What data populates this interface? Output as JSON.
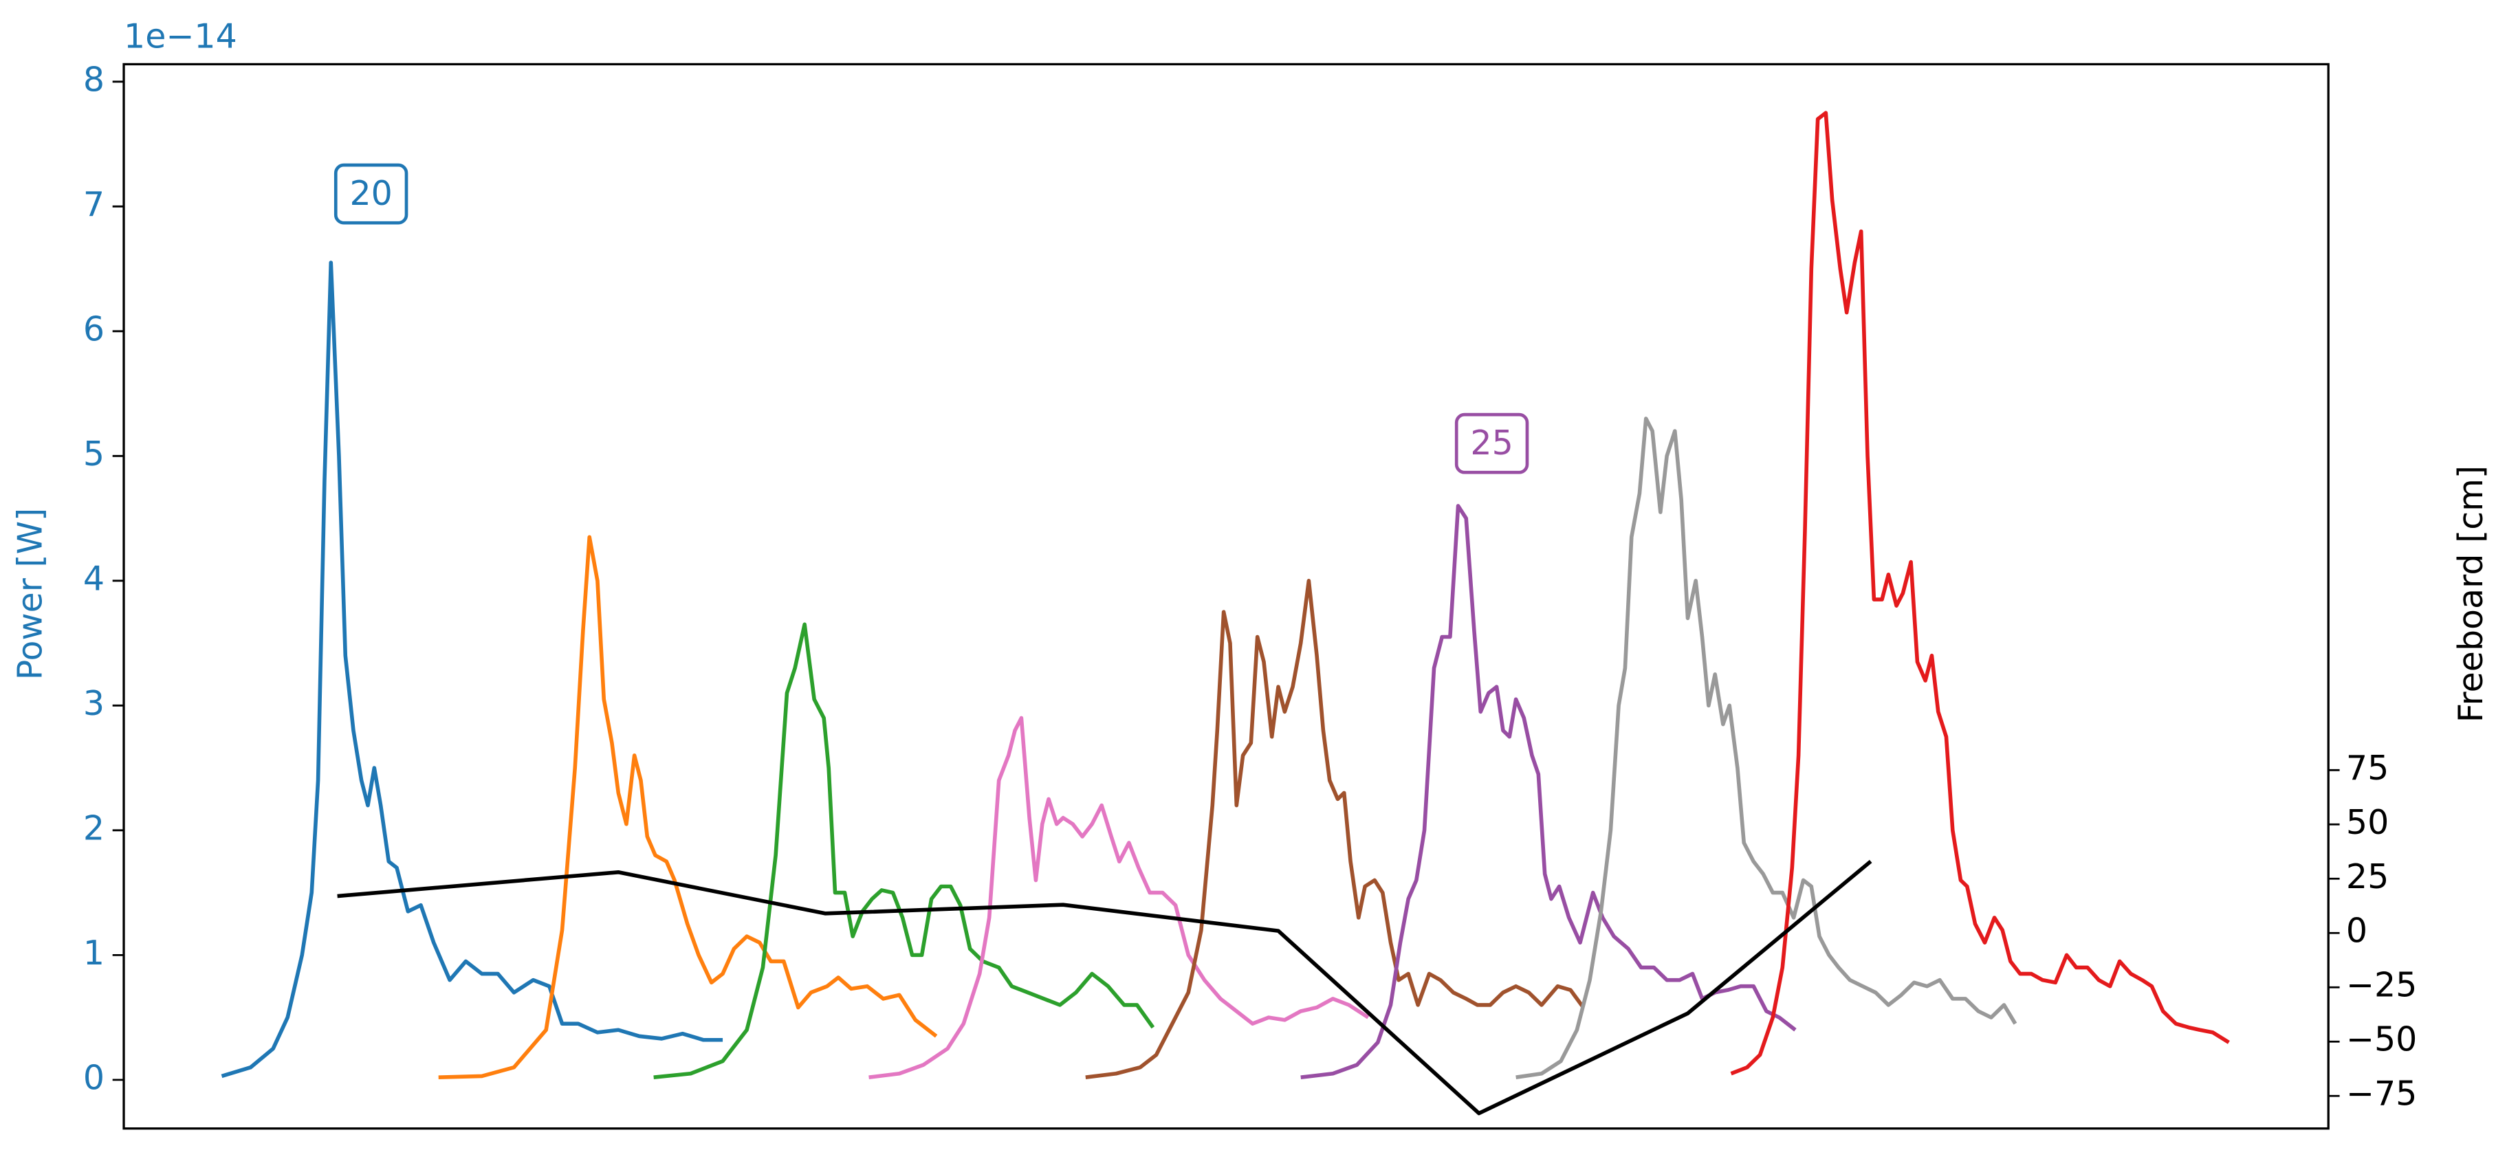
{
  "chart_data": {
    "type": "line",
    "y_offset_label": "1e−14",
    "ylabel": "Power [W]",
    "y2label": "Freeboard [cm]",
    "xlim": [
      77,
      1450
    ],
    "ylim": [
      -0.39,
      8.14
    ],
    "yticks": [
      0,
      1,
      2,
      3,
      4,
      5,
      6,
      7,
      8
    ],
    "y2lim": [
      -90,
      400
    ],
    "y2ticks": [
      {
        "value": -75,
        "label": "−75"
      },
      {
        "value": -50,
        "label": "−50"
      },
      {
        "value": -25,
        "label": "−25"
      },
      0,
      25,
      50,
      75
    ],
    "ycolor": "#1f77b4",
    "series": [
      {
        "color": "#1f77b4",
        "x": [
          138,
          156,
          170,
          179,
          188,
          194,
          198,
          202,
          206,
          211,
          215,
          220,
          225,
          229,
          233,
          237,
          242,
          247,
          254,
          262,
          270,
          280,
          290,
          300,
          310,
          320,
          332,
          342,
          350,
          360,
          372,
          385,
          398,
          412,
          425,
          438,
          450
        ],
        "values": [
          0.03,
          0.1,
          0.25,
          0.5,
          1.0,
          1.5,
          2.4,
          4.8,
          6.55,
          5.0,
          3.4,
          2.8,
          2.4,
          2.2,
          2.5,
          2.2,
          1.75,
          1.7,
          1.35,
          1.4,
          1.1,
          0.8,
          0.95,
          0.85,
          0.85,
          0.7,
          0.8,
          0.75,
          0.45,
          0.45,
          0.38,
          0.4,
          0.35,
          0.33,
          0.37,
          0.32,
          0.32
        ]
      },
      {
        "color": "#ff7f0e",
        "x": [
          273,
          300,
          320,
          340,
          350,
          358,
          363,
          367,
          372,
          376,
          381,
          385,
          390,
          395,
          399,
          403,
          408,
          415,
          420,
          428,
          435,
          443,
          450,
          457,
          465,
          473,
          480,
          488,
          497,
          505,
          515,
          522,
          530,
          540,
          550,
          560,
          570,
          583
        ],
        "values": [
          0.02,
          0.03,
          0.1,
          0.4,
          1.2,
          2.5,
          3.6,
          4.35,
          4.0,
          3.05,
          2.7,
          2.3,
          2.05,
          2.6,
          2.4,
          1.95,
          1.8,
          1.75,
          1.6,
          1.25,
          1.0,
          0.78,
          0.85,
          1.05,
          1.15,
          1.1,
          0.95,
          0.95,
          0.58,
          0.7,
          0.75,
          0.82,
          0.73,
          0.75,
          0.65,
          0.68,
          0.48,
          0.35
        ]
      },
      {
        "color": "#2ca02c",
        "x": [
          407,
          430,
          450,
          465,
          475,
          483,
          490,
          495,
          501,
          507,
          513,
          516,
          520,
          526,
          531,
          537,
          543,
          549,
          556,
          562,
          568,
          574,
          580,
          586,
          592,
          598,
          604,
          612,
          622,
          630,
          640,
          650,
          660,
          670,
          680,
          690,
          700,
          708,
          718
        ],
        "values": [
          0.02,
          0.05,
          0.15,
          0.4,
          0.9,
          1.8,
          3.1,
          3.3,
          3.65,
          3.05,
          2.9,
          2.5,
          1.5,
          1.5,
          1.15,
          1.35,
          1.45,
          1.52,
          1.5,
          1.3,
          1.0,
          1.0,
          1.45,
          1.55,
          1.55,
          1.4,
          1.05,
          0.95,
          0.9,
          0.75,
          0.7,
          0.65,
          0.6,
          0.7,
          0.85,
          0.75,
          0.6,
          0.6,
          0.42
        ]
      },
      {
        "color": "#e377c2",
        "x": [
          541,
          560,
          575,
          590,
          600,
          610,
          616,
          622,
          628,
          632,
          636,
          641,
          645,
          649,
          653,
          658,
          662,
          668,
          674,
          680,
          686,
          692,
          697,
          703,
          709,
          716,
          724,
          732,
          740,
          750,
          760,
          770,
          780,
          790,
          800,
          810,
          820,
          830,
          840,
          852
        ],
        "values": [
          0.02,
          0.05,
          0.12,
          0.25,
          0.45,
          0.85,
          1.3,
          2.4,
          2.6,
          2.8,
          2.9,
          2.1,
          1.6,
          2.05,
          2.25,
          2.05,
          2.1,
          2.05,
          1.95,
          2.05,
          2.2,
          1.95,
          1.75,
          1.9,
          1.7,
          1.5,
          1.5,
          1.4,
          1.0,
          0.8,
          0.65,
          0.55,
          0.45,
          0.5,
          0.48,
          0.55,
          0.58,
          0.65,
          0.6,
          0.5
        ]
      },
      {
        "color": "#a0522d",
        "x": [
          676,
          695,
          710,
          720,
          730,
          740,
          748,
          755,
          758,
          762,
          766,
          770,
          774,
          779,
          783,
          787,
          792,
          796,
          800,
          805,
          810,
          815,
          820,
          824,
          828,
          833,
          837,
          841,
          846,
          850,
          856,
          861,
          866,
          871,
          877,
          883,
          890,
          897,
          905,
          913,
          920,
          928,
          936,
          944,
          952,
          960,
          970,
          978,
          986
        ],
        "values": [
          0.02,
          0.05,
          0.1,
          0.2,
          0.45,
          0.7,
          1.2,
          2.2,
          2.8,
          3.75,
          3.5,
          2.2,
          2.6,
          2.7,
          3.55,
          3.35,
          2.75,
          3.15,
          2.95,
          3.15,
          3.5,
          4.0,
          3.4,
          2.8,
          2.4,
          2.25,
          2.3,
          1.75,
          1.3,
          1.55,
          1.6,
          1.5,
          1.1,
          0.8,
          0.85,
          0.6,
          0.85,
          0.8,
          0.7,
          0.65,
          0.6,
          0.6,
          0.7,
          0.75,
          0.7,
          0.6,
          0.75,
          0.72,
          0.58
        ]
      },
      {
        "color": "#984ea3",
        "x": [
          810,
          830,
          845,
          858,
          866,
          872,
          877,
          882,
          887,
          893,
          898,
          903,
          908,
          913,
          918,
          922,
          927,
          932,
          936,
          940,
          944,
          949,
          954,
          958,
          962,
          966,
          971,
          977,
          984,
          992,
          998,
          1005,
          1014,
          1022,
          1030,
          1038,
          1046,
          1054,
          1060,
          1068,
          1076,
          1084,
          1092,
          1100,
          1108,
          1118
        ],
        "values": [
          0.02,
          0.05,
          0.12,
          0.3,
          0.6,
          1.1,
          1.45,
          1.6,
          2.0,
          3.3,
          3.55,
          3.55,
          4.6,
          4.5,
          3.6,
          2.95,
          3.1,
          3.15,
          2.8,
          2.75,
          3.05,
          2.9,
          2.6,
          2.45,
          1.65,
          1.45,
          1.55,
          1.3,
          1.1,
          1.5,
          1.3,
          1.15,
          1.05,
          0.9,
          0.9,
          0.8,
          0.8,
          0.85,
          0.65,
          0.7,
          0.72,
          0.75,
          0.75,
          0.55,
          0.5,
          0.4
        ]
      },
      {
        "color": "#999999",
        "x": [
          944,
          960,
          972,
          982,
          990,
          997,
          1003,
          1008,
          1012,
          1016,
          1021,
          1025,
          1029,
          1034,
          1038,
          1043,
          1047,
          1051,
          1056,
          1060,
          1064,
          1068,
          1073,
          1077,
          1082,
          1086,
          1092,
          1098,
          1104,
          1110,
          1117,
          1123,
          1128,
          1133,
          1139,
          1145,
          1152,
          1160,
          1168,
          1176,
          1184,
          1192,
          1200,
          1208,
          1216,
          1224,
          1232,
          1240,
          1248,
          1255
        ],
        "values": [
          0.02,
          0.05,
          0.15,
          0.4,
          0.8,
          1.35,
          2.0,
          3.0,
          3.3,
          4.35,
          4.7,
          5.3,
          5.2,
          4.55,
          5.0,
          5.2,
          4.65,
          3.7,
          4.0,
          3.55,
          3.0,
          3.25,
          2.85,
          3.0,
          2.5,
          1.9,
          1.75,
          1.65,
          1.5,
          1.5,
          1.3,
          1.6,
          1.55,
          1.15,
          1.0,
          0.9,
          0.8,
          0.75,
          0.7,
          0.6,
          0.68,
          0.78,
          0.75,
          0.8,
          0.65,
          0.65,
          0.55,
          0.5,
          0.6,
          0.45
        ]
      },
      {
        "color": "#e41a1c",
        "x": [
          1078,
          1088,
          1096,
          1104,
          1110,
          1116,
          1120,
          1124,
          1128,
          1132,
          1137,
          1141,
          1146,
          1150,
          1155,
          1159,
          1163,
          1167,
          1172,
          1176,
          1181,
          1185,
          1190,
          1194,
          1199,
          1203,
          1207,
          1212,
          1216,
          1221,
          1225,
          1230,
          1236,
          1242,
          1247,
          1252,
          1258,
          1265,
          1272,
          1280,
          1287,
          1293,
          1300,
          1307,
          1314,
          1320,
          1327,
          1334,
          1340,
          1347,
          1355,
          1363,
          1370,
          1378,
          1388
        ],
        "values": [
          0.05,
          0.1,
          0.2,
          0.5,
          0.9,
          1.7,
          2.6,
          4.4,
          6.5,
          7.7,
          7.75,
          7.05,
          6.5,
          6.15,
          6.55,
          6.8,
          5.0,
          3.85,
          3.85,
          4.05,
          3.8,
          3.9,
          4.15,
          3.35,
          3.2,
          3.4,
          2.95,
          2.75,
          2.0,
          1.6,
          1.55,
          1.25,
          1.1,
          1.3,
          1.2,
          0.95,
          0.85,
          0.85,
          0.8,
          0.78,
          1.0,
          0.9,
          0.9,
          0.8,
          0.75,
          0.95,
          0.85,
          0.8,
          0.75,
          0.55,
          0.45,
          0.42,
          0.4,
          0.38,
          0.3
        ]
      },
      {
        "color": "#000000",
        "axis": "y2",
        "x": [
          210,
          385,
          514,
          662,
          796,
          921,
          1051,
          1165
        ],
        "values": [
          17,
          28,
          9,
          13,
          1,
          -83,
          -37,
          33
        ]
      }
    ],
    "annotations": [
      {
        "text": "20",
        "x": 231,
        "y": 7.1,
        "color": "#1f77b4"
      },
      {
        "text": "25",
        "x": 929,
        "y": 5.1,
        "color": "#984ea3"
      }
    ]
  }
}
